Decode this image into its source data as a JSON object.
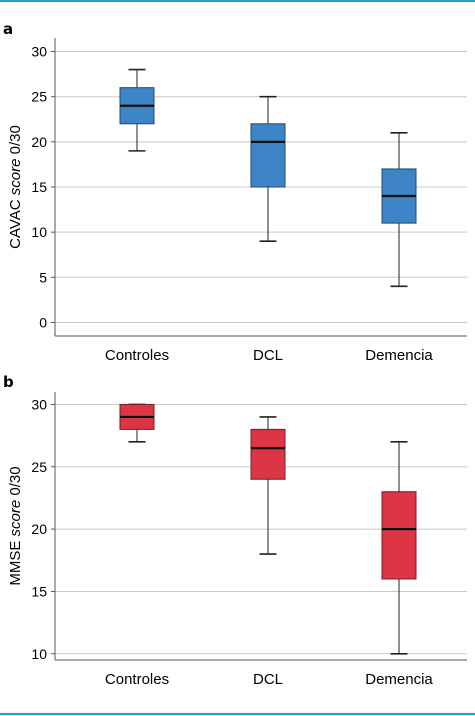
{
  "chart_data": [
    {
      "type": "boxplot",
      "panel_label": "a",
      "ylabel": "CAVAC",
      "ylabel_italic": "score",
      "ylabel_suffix": "0/30",
      "ylim": [
        -1.5,
        31.5
      ],
      "yticks": [
        0,
        5,
        10,
        15,
        20,
        25,
        30
      ],
      "grid": true,
      "color": "#3d85c6",
      "categories": [
        "Controles",
        "DCL",
        "Demencia"
      ],
      "boxes": [
        {
          "min": 19,
          "q1": 22,
          "median": 24,
          "q3": 26,
          "max": 28
        },
        {
          "min": 9,
          "q1": 15,
          "median": 20,
          "q3": 22,
          "max": 25
        },
        {
          "min": 4,
          "q1": 11,
          "median": 14,
          "q3": 17,
          "max": 21
        }
      ]
    },
    {
      "type": "boxplot",
      "panel_label": "b",
      "ylabel": "MMSE",
      "ylabel_italic": "score",
      "ylabel_suffix": "0/30",
      "ylim": [
        9.5,
        31
      ],
      "yticks": [
        10,
        15,
        20,
        25,
        30
      ],
      "grid": true,
      "color": "#dc3545",
      "categories": [
        "Controles",
        "DCL",
        "Demencia"
      ],
      "boxes": [
        {
          "min": 27,
          "q1": 28,
          "median": 29,
          "q3": 30,
          "max": 30
        },
        {
          "min": 18,
          "q1": 24,
          "median": 26.5,
          "q3": 28,
          "max": 29
        },
        {
          "min": 10,
          "q1": 16,
          "median": 20,
          "q3": 23,
          "max": 27
        }
      ]
    }
  ]
}
